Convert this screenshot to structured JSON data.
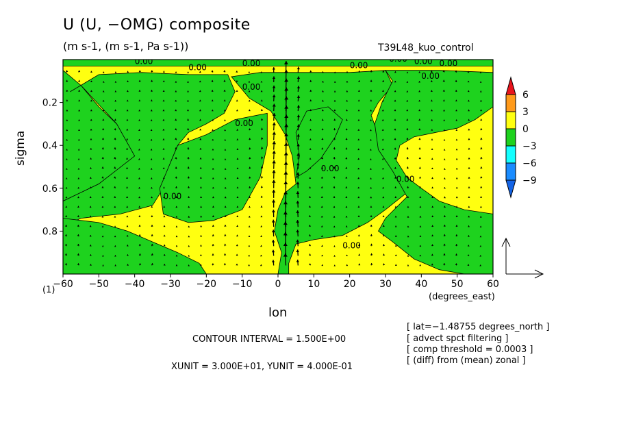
{
  "header": {
    "title": "U (U, −OMG) composite",
    "units": "(m s-1, (m s-1, Pa s-1))",
    "experiment": "T39L48_kuo_control"
  },
  "axes": {
    "ylabel": "sigma",
    "xlabel": "lon",
    "xunits": "(degrees_east)",
    "yfoot": "(1)"
  },
  "footer": {
    "contour_interval": "CONTOUR INTERVAL = 1.500E+00",
    "unit_scale": "XUNIT = 3.000E+01, YUNIT = 4.000E-01"
  },
  "notes": [
    "[ lat=−1.48755 degrees_north ]",
    "[ advect spct filtering ]",
    "[ comp threshold = 0.0003 ]",
    "[ (diff) from (mean) zonal ]"
  ],
  "colorbar": {
    "labels": [
      "6",
      "3",
      "0",
      "−3",
      "−6",
      "−9"
    ],
    "colors": [
      "#e8141c",
      "#ff9a1a",
      "#ffff10",
      "#1ed21e",
      "#14ffff",
      "#1a8cff",
      "#1464e6"
    ]
  },
  "chart_data": {
    "type": "contour+vector",
    "x_ticks": [
      "−60",
      "−50",
      "−40",
      "−30",
      "−20",
      "−10",
      "0",
      "10",
      "20",
      "30",
      "40",
      "50",
      "60"
    ],
    "x_range": [
      -60,
      60
    ],
    "y_ticks": [
      "0.2",
      "0.4",
      "0.6",
      "0.8"
    ],
    "y_range": [
      1.0,
      0.0
    ],
    "contour_label": "0.00",
    "colors": {
      "positive": "#ffff10",
      "negative": "#1ed21e"
    },
    "regions": [
      {
        "sign": "negative",
        "outline": [
          [
            -60,
            0.05
          ],
          [
            -55,
            0.12
          ],
          [
            -50,
            0.22
          ],
          [
            -45,
            0.3
          ],
          [
            -42,
            0.38
          ],
          [
            -40,
            0.45
          ],
          [
            -43,
            0.55
          ],
          [
            -50,
            0.58
          ],
          [
            -55,
            0.62
          ],
          [
            -60,
            0.66
          ]
        ]
      },
      {
        "sign": "negative",
        "outline": [
          [
            -58,
            0.15
          ],
          [
            -50,
            0.07
          ],
          [
            -38,
            0.06
          ],
          [
            -25,
            0.07
          ],
          [
            -14,
            0.07
          ],
          [
            -12,
            0.15
          ],
          [
            -15,
            0.25
          ],
          [
            -20,
            0.3
          ],
          [
            -25,
            0.34
          ],
          [
            -28,
            0.4
          ],
          [
            -30,
            0.48
          ],
          [
            -32,
            0.6
          ],
          [
            -35,
            0.68
          ],
          [
            -44,
            0.72
          ],
          [
            -55,
            0.74
          ],
          [
            -60,
            0.78
          ],
          [
            -60,
            0.66
          ],
          [
            -50,
            0.58
          ],
          [
            -40,
            0.45
          ],
          [
            -45,
            0.3
          ],
          [
            -55,
            0.12
          ]
        ]
      },
      {
        "sign": "negative",
        "outline": [
          [
            -28,
            0.4
          ],
          [
            -20,
            0.35
          ],
          [
            -12,
            0.28
          ],
          [
            -3,
            0.25
          ],
          [
            -3,
            0.4
          ],
          [
            -5,
            0.55
          ],
          [
            -10,
            0.7
          ],
          [
            -18,
            0.75
          ],
          [
            -25,
            0.76
          ],
          [
            -32,
            0.72
          ],
          [
            -33,
            0.6
          ],
          [
            -30,
            0.48
          ]
        ]
      },
      {
        "sign": "negative",
        "outline": [
          [
            -60,
            0.74
          ],
          [
            -50,
            0.76
          ],
          [
            -42,
            0.8
          ],
          [
            -35,
            0.85
          ],
          [
            -28,
            0.9
          ],
          [
            -22,
            0.95
          ],
          [
            -20,
            1.0
          ],
          [
            -60,
            1.0
          ]
        ]
      },
      {
        "sign": "negative",
        "outline": [
          [
            -13,
            0.08
          ],
          [
            -5,
            0.06
          ],
          [
            5,
            0.06
          ],
          [
            20,
            0.06
          ],
          [
            30,
            0.05
          ],
          [
            32,
            0.12
          ],
          [
            28,
            0.2
          ],
          [
            26,
            0.26
          ],
          [
            28,
            0.35
          ],
          [
            30,
            0.45
          ],
          [
            35,
            0.55
          ],
          [
            36,
            0.62
          ],
          [
            30,
            0.7
          ],
          [
            25,
            0.76
          ],
          [
            18,
            0.82
          ],
          [
            10,
            0.84
          ],
          [
            5,
            0.86
          ],
          [
            3,
            0.95
          ],
          [
            3,
            1.0
          ],
          [
            0,
            1.0
          ],
          [
            1,
            0.9
          ],
          [
            -1,
            0.8
          ],
          [
            0,
            0.7
          ],
          [
            2,
            0.62
          ],
          [
            5,
            0.58
          ],
          [
            4,
            0.45
          ],
          [
            2,
            0.35
          ],
          [
            -2,
            0.24
          ],
          [
            -8,
            0.18
          ]
        ]
      },
      {
        "sign": "negative",
        "outline": [
          [
            8,
            0.24
          ],
          [
            14,
            0.22
          ],
          [
            18,
            0.28
          ],
          [
            16,
            0.36
          ],
          [
            12,
            0.46
          ],
          [
            8,
            0.52
          ],
          [
            5,
            0.55
          ],
          [
            6,
            0.45
          ],
          [
            5,
            0.34
          ]
        ]
      },
      {
        "sign": "negative",
        "outline": [
          [
            30,
            0.05
          ],
          [
            45,
            0.05
          ],
          [
            60,
            0.06
          ],
          [
            60,
            0.22
          ],
          [
            55,
            0.28
          ],
          [
            50,
            0.32
          ],
          [
            44,
            0.34
          ],
          [
            38,
            0.36
          ],
          [
            34,
            0.4
          ],
          [
            33,
            0.47
          ],
          [
            36,
            0.55
          ],
          [
            40,
            0.6
          ],
          [
            45,
            0.66
          ],
          [
            52,
            0.7
          ],
          [
            60,
            0.72
          ],
          [
            60,
            1.0
          ],
          [
            52,
            1.0
          ],
          [
            45,
            0.98
          ],
          [
            38,
            0.93
          ],
          [
            32,
            0.85
          ],
          [
            28,
            0.8
          ],
          [
            30,
            0.74
          ],
          [
            36,
            0.64
          ],
          [
            32,
            0.52
          ],
          [
            28,
            0.42
          ],
          [
            27,
            0.3
          ],
          [
            29,
            0.2
          ],
          [
            32,
            0.1
          ]
        ]
      },
      {
        "sign": "negative",
        "outline": [
          [
            -60,
            0.0
          ],
          [
            60,
            0.0
          ],
          [
            60,
            0.03
          ],
          [
            -60,
            0.03
          ]
        ]
      }
    ],
    "vectors": "quiver field of (U, −OMG); strong upward arrows near lon 0–5"
  }
}
